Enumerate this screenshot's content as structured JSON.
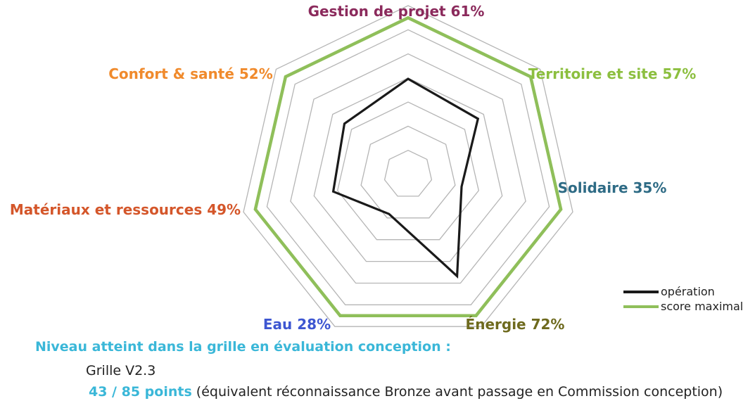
{
  "chart_data": {
    "type": "radar",
    "axes": [
      {
        "label": "Gestion de projet 61%",
        "value": 61,
        "color": "#8b2a5c"
      },
      {
        "label": "Territoire et site 57%",
        "value": 57,
        "color": "#8cbf3f"
      },
      {
        "label": "Solidaire 35%",
        "value": 35,
        "color": "#2e6b85"
      },
      {
        "label": "Énergie 72%",
        "value": 72,
        "color": "#6e6a1e"
      },
      {
        "label": "Eau 28%",
        "value": 28,
        "color": "#3d56d1"
      },
      {
        "label": "Matériaux et ressources 49%",
        "value": 49,
        "color": "#d4562a"
      },
      {
        "label": "Confort & santé 52%",
        "value": 52,
        "color": "#f08a2c"
      }
    ],
    "series": [
      {
        "name": "opération",
        "values": [
          61,
          57,
          35,
          72,
          28,
          49,
          52
        ],
        "color": "#1a1a1a"
      },
      {
        "name": "score maximal",
        "values": [
          100,
          100,
          100,
          100,
          100,
          100,
          100
        ],
        "color": "#8fbf5a"
      }
    ],
    "range": [
      0,
      100
    ],
    "grid_levels": 7,
    "legend": "bottom-right"
  },
  "footer": {
    "heading": "Niveau atteint dans la grille en évaluation conception :",
    "grid": "Grille V2.3",
    "points": "43 / 85 points",
    "points_note": " (équivalent réconnaissance Bronze avant passage en Commission conception)"
  }
}
